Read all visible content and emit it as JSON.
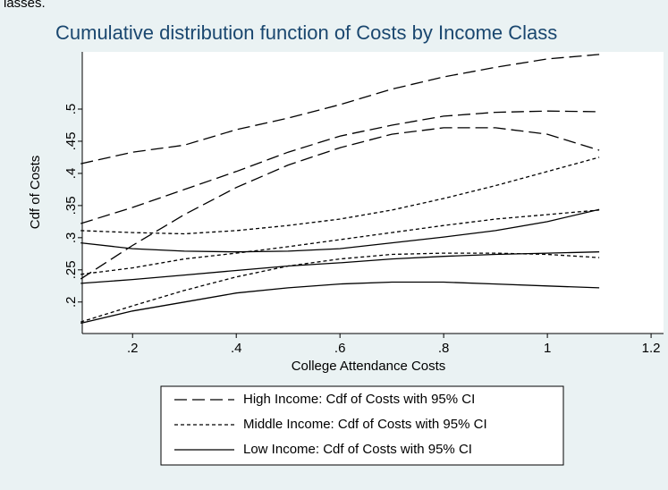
{
  "chart_data": {
    "type": "line",
    "caption": "lasses.",
    "title": "Cumulative distribution function of Costs by Income Class",
    "xlabel": "College Attendance Costs",
    "ylabel": "Cdf of Costs",
    "x": [
      0.1,
      0.2,
      0.3,
      0.4,
      0.5,
      0.6,
      0.7,
      0.8,
      0.9,
      1.0,
      1.1
    ],
    "xlim": [
      0.103,
      1.224
    ],
    "ylim": [
      0.151,
      0.589
    ],
    "xticks": [
      {
        "value": 0.2,
        "label": ".2"
      },
      {
        "value": 0.4,
        "label": ".4"
      },
      {
        "value": 0.6,
        "label": ".6"
      },
      {
        "value": 0.8,
        "label": ".8"
      },
      1,
      1.2
    ],
    "yticks": [
      {
        "value": 0.2,
        "label": ".2"
      },
      {
        "value": 0.25,
        "label": ".25"
      },
      {
        "value": 0.3,
        "label": ".3"
      },
      {
        "value": 0.35,
        "label": ".35"
      },
      {
        "value": 0.4,
        "label": ".4"
      },
      {
        "value": 0.45,
        "label": ".45"
      },
      {
        "value": 0.5,
        "label": ".5"
      }
    ],
    "grid": false,
    "legend": "bottom",
    "series": [
      {
        "name": "High Income: Cdf of Costs with 95% CI",
        "color": "#000000",
        "dash": "longdash",
        "ci_upper": [
          0.415,
          0.433,
          0.444,
          0.468,
          0.486,
          0.507,
          0.531,
          0.55,
          0.565,
          0.578,
          0.585
        ],
        "values": [
          0.322,
          0.347,
          0.375,
          0.403,
          0.433,
          0.458,
          0.475,
          0.489,
          0.495,
          0.497,
          0.496
        ],
        "ci_lower": [
          0.236,
          0.288,
          0.336,
          0.378,
          0.413,
          0.44,
          0.461,
          0.471,
          0.471,
          0.461,
          0.436
        ]
      },
      {
        "name": "Middle Income: Cdf of Costs with 95% CI",
        "color": "#000000",
        "dash": "shortdash",
        "ci_upper": [
          0.311,
          0.308,
          0.306,
          0.311,
          0.319,
          0.329,
          0.343,
          0.361,
          0.381,
          0.403,
          0.425
        ],
        "values": [
          0.243,
          0.253,
          0.267,
          0.276,
          0.286,
          0.297,
          0.308,
          0.319,
          0.329,
          0.336,
          0.343
        ],
        "ci_lower": [
          0.169,
          0.194,
          0.218,
          0.239,
          0.256,
          0.267,
          0.274,
          0.276,
          0.276,
          0.274,
          0.269
        ]
      },
      {
        "name": "Low Income: Cdf of Costs with 95% CI",
        "color": "#000000",
        "dash": "solid",
        "ci_upper": [
          0.292,
          0.283,
          0.279,
          0.278,
          0.279,
          0.283,
          0.292,
          0.301,
          0.311,
          0.325,
          0.344
        ],
        "values": [
          0.229,
          0.235,
          0.242,
          0.249,
          0.256,
          0.261,
          0.267,
          0.271,
          0.274,
          0.276,
          0.278
        ],
        "ci_lower": [
          0.167,
          0.186,
          0.2,
          0.214,
          0.222,
          0.228,
          0.231,
          0.231,
          0.228,
          0.225,
          0.222
        ]
      }
    ]
  }
}
